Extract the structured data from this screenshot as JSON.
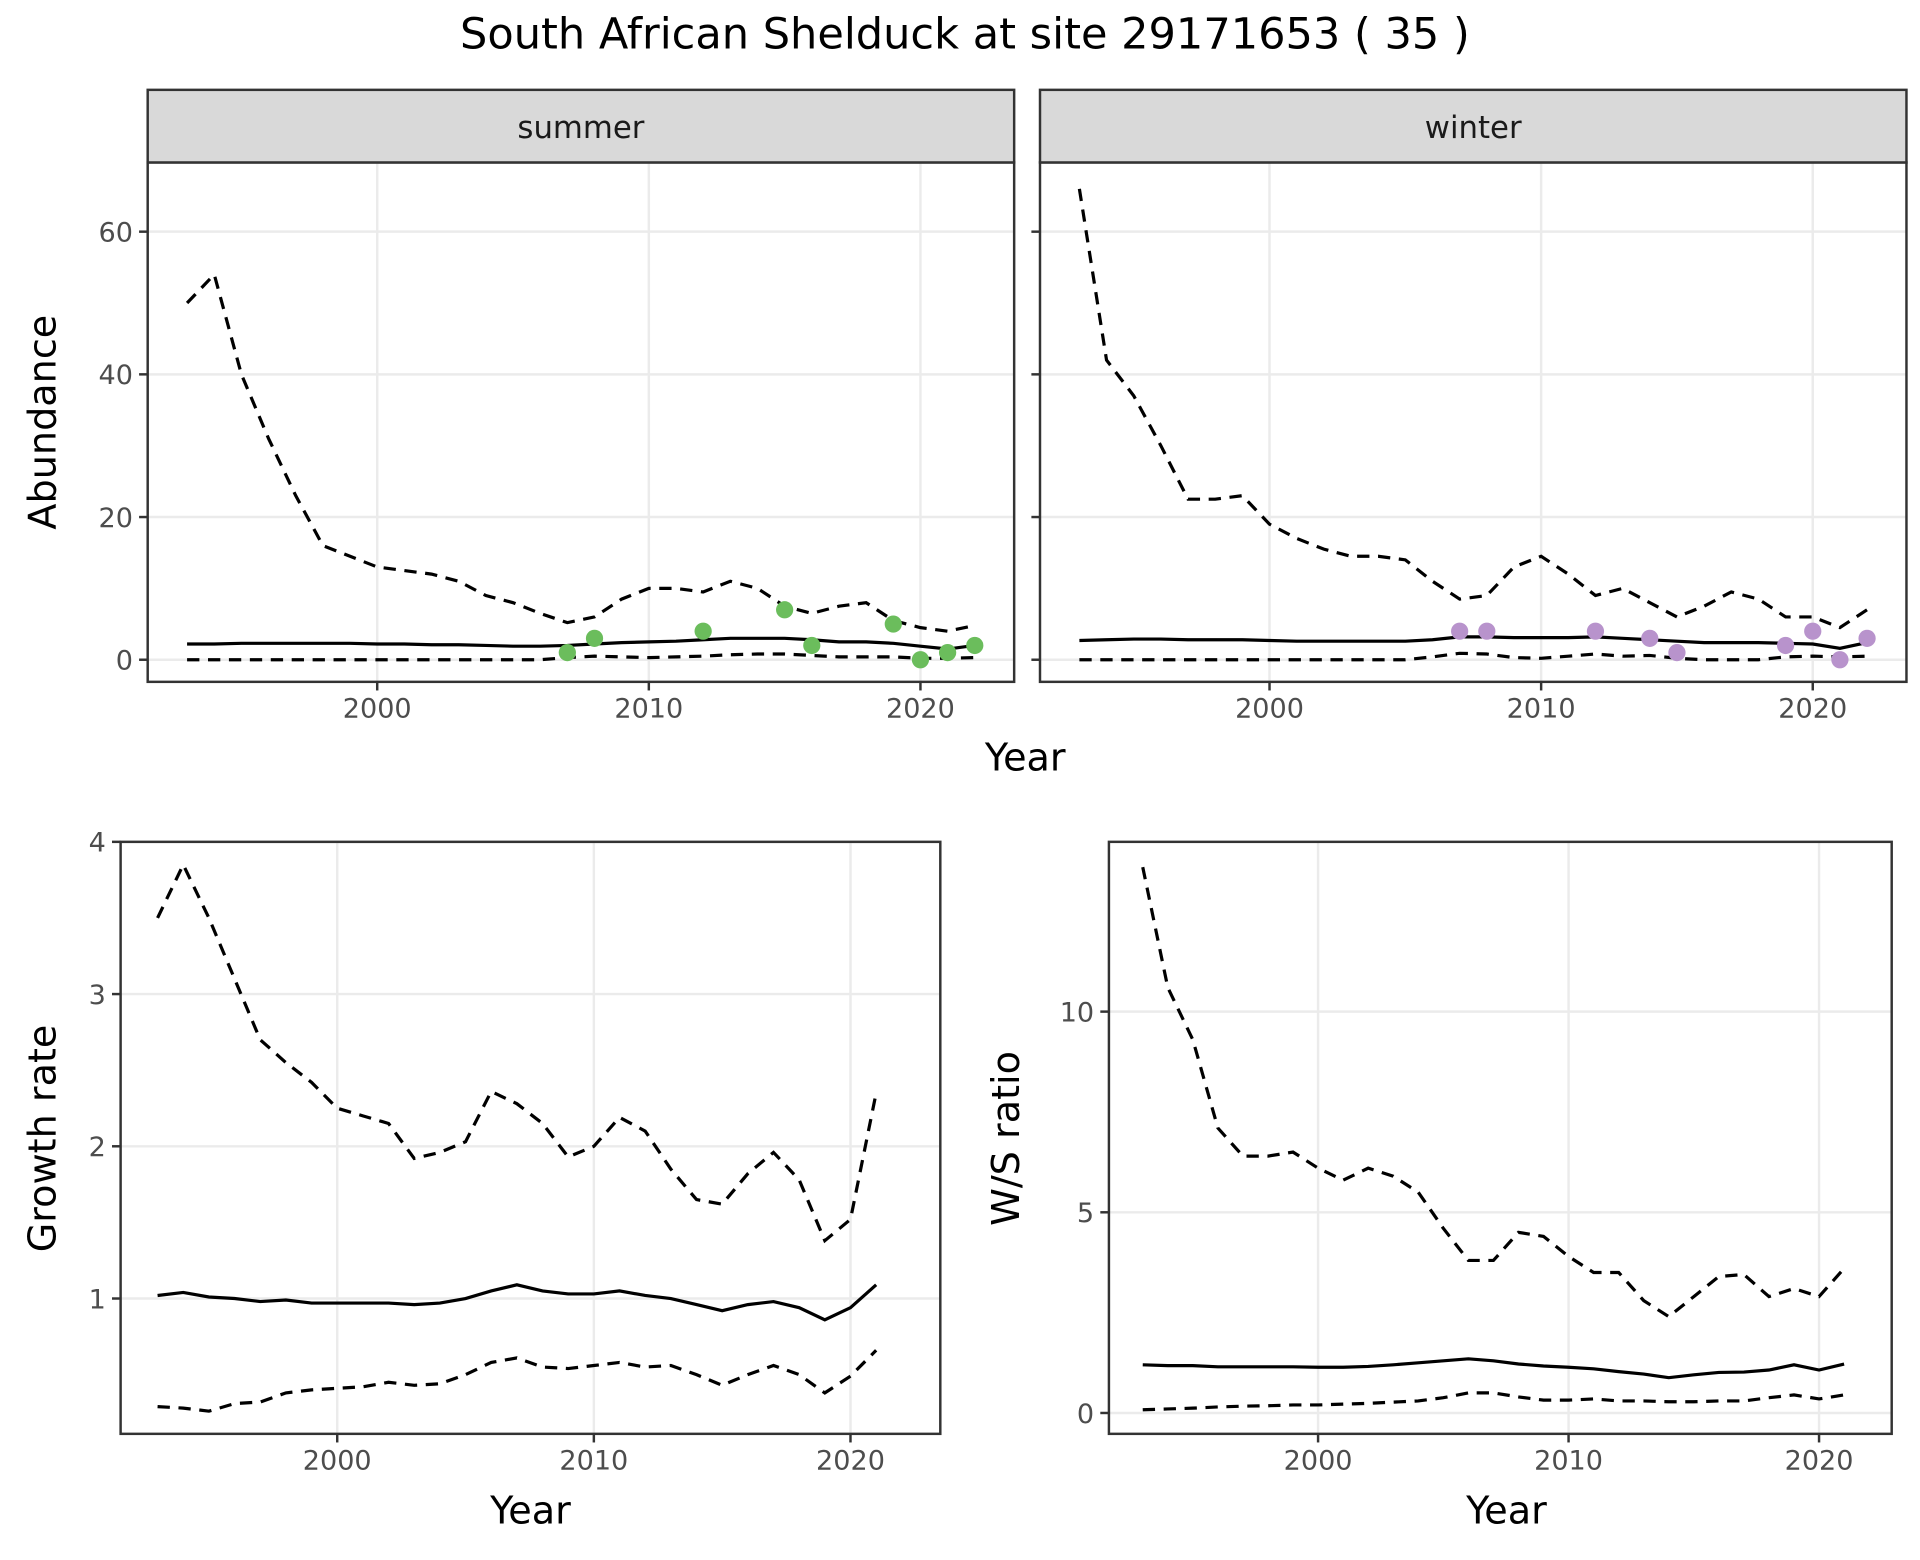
{
  "title": "South African Shelduck at site 29171653 ( 35 )",
  "chart_data": [
    {
      "type": "line",
      "facet": "summer",
      "x_label": "Year",
      "y_label": "Abundance",
      "xlim": [
        1991.55,
        2023.45
      ],
      "ylim": [
        -3.1,
        69.7
      ],
      "xticks": [
        2000,
        2010,
        2020
      ],
      "yticks": [
        0,
        20,
        40,
        60
      ],
      "grid": true,
      "x": [
        1993,
        1994,
        1995,
        1996,
        1997,
        1998,
        1999,
        2000,
        2001,
        2002,
        2003,
        2004,
        2005,
        2006,
        2007,
        2008,
        2009,
        2010,
        2011,
        2012,
        2013,
        2014,
        2015,
        2016,
        2017,
        2018,
        2019,
        2020,
        2021,
        2022
      ],
      "series": [
        {
          "color": "#000000",
          "dash": true,
          "values": [
            50,
            54,
            40,
            31,
            23,
            16,
            14.5,
            13,
            12.5,
            12,
            11,
            9,
            8,
            6.5,
            5.2,
            6,
            8.5,
            10,
            10,
            9.5,
            11,
            10,
            7.5,
            6.5,
            7.5,
            8,
            5.5,
            4.5,
            4,
            4.8
          ]
        },
        {
          "color": "#000000",
          "dash": false,
          "values": [
            2.2,
            2.2,
            2.3,
            2.3,
            2.3,
            2.3,
            2.3,
            2.2,
            2.2,
            2.1,
            2.1,
            2,
            1.9,
            1.9,
            2,
            2.2,
            2.4,
            2.5,
            2.6,
            2.8,
            3,
            3,
            3,
            2.8,
            2.5,
            2.5,
            2.3,
            1.9,
            1.5,
            2
          ]
        },
        {
          "color": "#000000",
          "dash": true,
          "values": [
            0,
            0,
            0,
            0,
            0,
            0,
            0,
            0,
            0,
            0,
            0,
            0,
            0,
            0,
            0.3,
            0.5,
            0.4,
            0.3,
            0.4,
            0.5,
            0.7,
            0.8,
            0.8,
            0.6,
            0.4,
            0.4,
            0.4,
            0.2,
            0.2,
            0.3
          ]
        }
      ],
      "points": {
        "color": "#6bbd5c",
        "x": [
          2007,
          2008,
          2012,
          2015,
          2016,
          2019,
          2020,
          2021,
          2022
        ],
        "values": [
          1,
          3,
          4,
          7,
          2,
          5,
          0,
          1,
          2
        ]
      }
    },
    {
      "type": "line",
      "facet": "winter",
      "xlim": [
        1991.55,
        2023.45
      ],
      "ylim": [
        -3.1,
        69.7
      ],
      "xticks": [
        2000,
        2010,
        2020
      ],
      "yticks": [
        0,
        20,
        40,
        60
      ],
      "grid": true,
      "x": [
        1993,
        1994,
        1995,
        1996,
        1997,
        1998,
        1999,
        2000,
        2001,
        2002,
        2003,
        2004,
        2005,
        2006,
        2007,
        2008,
        2009,
        2010,
        2011,
        2012,
        2013,
        2014,
        2015,
        2016,
        2017,
        2018,
        2019,
        2020,
        2021,
        2022
      ],
      "series": [
        {
          "color": "#000000",
          "dash": true,
          "values": [
            66,
            42,
            37,
            30,
            22.5,
            22.5,
            23,
            19,
            17,
            15.5,
            14.5,
            14.5,
            14,
            11,
            8.5,
            9,
            13,
            14.5,
            12,
            9,
            10,
            8,
            6,
            7.5,
            9.5,
            8.5,
            6,
            6,
            4.5,
            7
          ]
        },
        {
          "color": "#000000",
          "dash": false,
          "values": [
            2.7,
            2.8,
            2.9,
            2.9,
            2.8,
            2.8,
            2.8,
            2.7,
            2.6,
            2.6,
            2.6,
            2.6,
            2.6,
            2.8,
            3.2,
            3.2,
            3.1,
            3.1,
            3.1,
            3.2,
            3,
            2.8,
            2.6,
            2.4,
            2.4,
            2.4,
            2.3,
            2.2,
            1.6,
            2.4
          ]
        },
        {
          "color": "#000000",
          "dash": true,
          "values": [
            0,
            0,
            0,
            0,
            0,
            0,
            0,
            0,
            0,
            0,
            0,
            0,
            0,
            0.4,
            0.9,
            0.8,
            0.3,
            0.2,
            0.5,
            0.8,
            0.5,
            0.6,
            0.2,
            0,
            0,
            0,
            0.4,
            0.5,
            0.4,
            0.5
          ]
        }
      ],
      "points": {
        "color": "#b893cc",
        "x": [
          2007,
          2008,
          2012,
          2014,
          2015,
          2019,
          2020,
          2021,
          2022
        ],
        "values": [
          4,
          4,
          4,
          3,
          1,
          2,
          4,
          0,
          3
        ]
      }
    },
    {
      "type": "line",
      "x_label": "Year",
      "y_label": "Growth rate",
      "xlim": [
        1991.56,
        2023.5
      ],
      "ylim": [
        0.111,
        4.0
      ],
      "xticks": [
        2000,
        2010,
        2020
      ],
      "yticks": [
        1,
        2,
        3,
        4
      ],
      "grid": true,
      "x": [
        1993,
        1994,
        1995,
        1996,
        1997,
        1998,
        1999,
        2000,
        2001,
        2002,
        2003,
        2004,
        2005,
        2006,
        2007,
        2008,
        2009,
        2010,
        2011,
        2012,
        2013,
        2014,
        2015,
        2016,
        2017,
        2018,
        2019,
        2020,
        2021
      ],
      "series": [
        {
          "color": "#000000",
          "dash": true,
          "values": [
            3.5,
            3.85,
            3.5,
            3.1,
            2.7,
            2.55,
            2.42,
            2.25,
            2.2,
            2.15,
            1.92,
            1.96,
            2.03,
            2.36,
            2.28,
            2.15,
            1.93,
            2.0,
            2.19,
            2.1,
            1.85,
            1.65,
            1.62,
            1.82,
            1.96,
            1.78,
            1.38,
            1.52,
            2.35
          ]
        },
        {
          "color": "#000000",
          "dash": false,
          "values": [
            1.02,
            1.04,
            1.01,
            1.0,
            0.98,
            0.99,
            0.97,
            0.97,
            0.97,
            0.97,
            0.96,
            0.97,
            1.0,
            1.05,
            1.09,
            1.05,
            1.03,
            1.03,
            1.05,
            1.02,
            1.0,
            0.96,
            0.92,
            0.96,
            0.98,
            0.94,
            0.86,
            0.94,
            1.09
          ]
        },
        {
          "color": "#000000",
          "dash": true,
          "values": [
            0.29,
            0.28,
            0.26,
            0.31,
            0.32,
            0.38,
            0.4,
            0.41,
            0.42,
            0.45,
            0.43,
            0.44,
            0.5,
            0.58,
            0.61,
            0.55,
            0.54,
            0.56,
            0.58,
            0.55,
            0.56,
            0.5,
            0.43,
            0.5,
            0.56,
            0.5,
            0.38,
            0.49,
            0.66
          ]
        }
      ]
    },
    {
      "type": "line",
      "x_label": "Year",
      "y_label": "W/S ratio",
      "xlim": [
        1991.65,
        2022.9
      ],
      "ylim": [
        -0.52,
        14.23
      ],
      "xticks": [
        2000,
        2010,
        2020
      ],
      "yticks": [
        0,
        5,
        10
      ],
      "grid": true,
      "x": [
        1993,
        1994,
        1995,
        1996,
        1997,
        1998,
        1999,
        2000,
        2001,
        2002,
        2003,
        2004,
        2005,
        2006,
        2007,
        2008,
        2009,
        2010,
        2011,
        2012,
        2013,
        2014,
        2015,
        2016,
        2017,
        2018,
        2019,
        2020,
        2021
      ],
      "series": [
        {
          "color": "#000000",
          "dash": true,
          "values": [
            13.6,
            10.6,
            9.3,
            7.1,
            6.4,
            6.4,
            6.5,
            6.1,
            5.8,
            6.1,
            5.9,
            5.5,
            4.6,
            3.8,
            3.8,
            4.5,
            4.4,
            3.9,
            3.5,
            3.5,
            2.8,
            2.4,
            2.9,
            3.4,
            3.45,
            2.9,
            3.1,
            2.9,
            3.6
          ]
        },
        {
          "color": "#000000",
          "dash": false,
          "values": [
            1.2,
            1.18,
            1.18,
            1.15,
            1.15,
            1.15,
            1.15,
            1.14,
            1.14,
            1.16,
            1.2,
            1.25,
            1.3,
            1.35,
            1.3,
            1.22,
            1.17,
            1.14,
            1.1,
            1.03,
            0.97,
            0.88,
            0.95,
            1.01,
            1.02,
            1.07,
            1.2,
            1.07,
            1.22
          ]
        },
        {
          "color": "#000000",
          "dash": true,
          "values": [
            0.08,
            0.1,
            0.12,
            0.15,
            0.17,
            0.18,
            0.2,
            0.2,
            0.22,
            0.24,
            0.27,
            0.3,
            0.38,
            0.5,
            0.5,
            0.4,
            0.32,
            0.32,
            0.35,
            0.3,
            0.3,
            0.28,
            0.28,
            0.3,
            0.3,
            0.38,
            0.45,
            0.35,
            0.45
          ]
        }
      ]
    }
  ]
}
